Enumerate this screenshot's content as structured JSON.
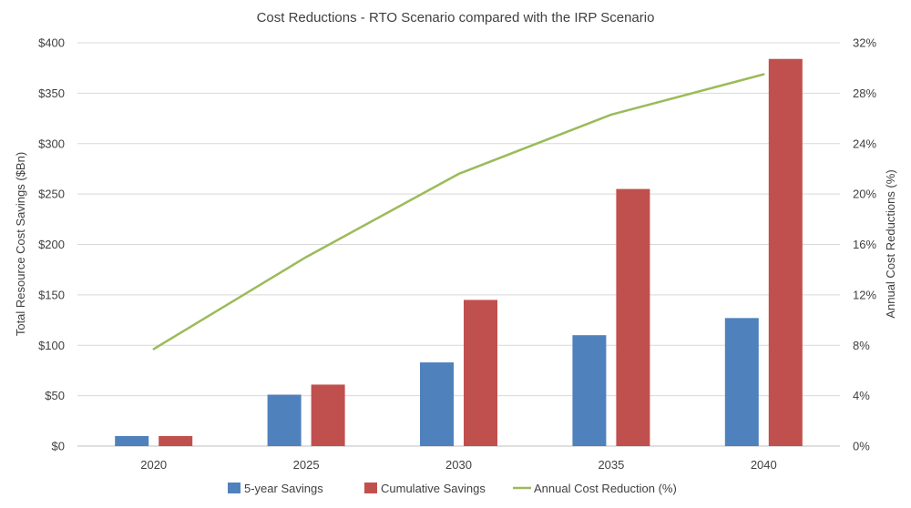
{
  "chart_data": {
    "type": "bar",
    "title": "Cost Reductions - RTO Scenario compared with the IRP Scenario",
    "categories": [
      "2020",
      "2025",
      "2030",
      "2035",
      "2040"
    ],
    "series": [
      {
        "name": "5-year Savings",
        "kind": "bar",
        "axis": "left",
        "color": "#4f81bd",
        "values": [
          10,
          51,
          83,
          110,
          127
        ]
      },
      {
        "name": "Cumulative Savings",
        "kind": "bar",
        "axis": "left",
        "color": "#c0504d",
        "values": [
          10,
          61,
          145,
          255,
          384
        ]
      },
      {
        "name": "Annual Cost Reduction (%)",
        "kind": "line",
        "axis": "right",
        "color": "#9bbb59",
        "values": [
          7.7,
          15.0,
          21.6,
          26.3,
          29.5
        ]
      }
    ],
    "ylabel": "Total Resource Cost Savings ($Bn)",
    "ylim": [
      0,
      400
    ],
    "yticks": [
      "$0",
      "$50",
      "$100",
      "$150",
      "$200",
      "$250",
      "$300",
      "$350",
      "$400"
    ],
    "y2label": "Annual Cost Reductions (%)",
    "y2lim": [
      0,
      32
    ],
    "y2ticks": [
      "0%",
      "4%",
      "8%",
      "12%",
      "16%",
      "20%",
      "24%",
      "28%",
      "32%"
    ],
    "grid": true,
    "legend": "bottom"
  }
}
